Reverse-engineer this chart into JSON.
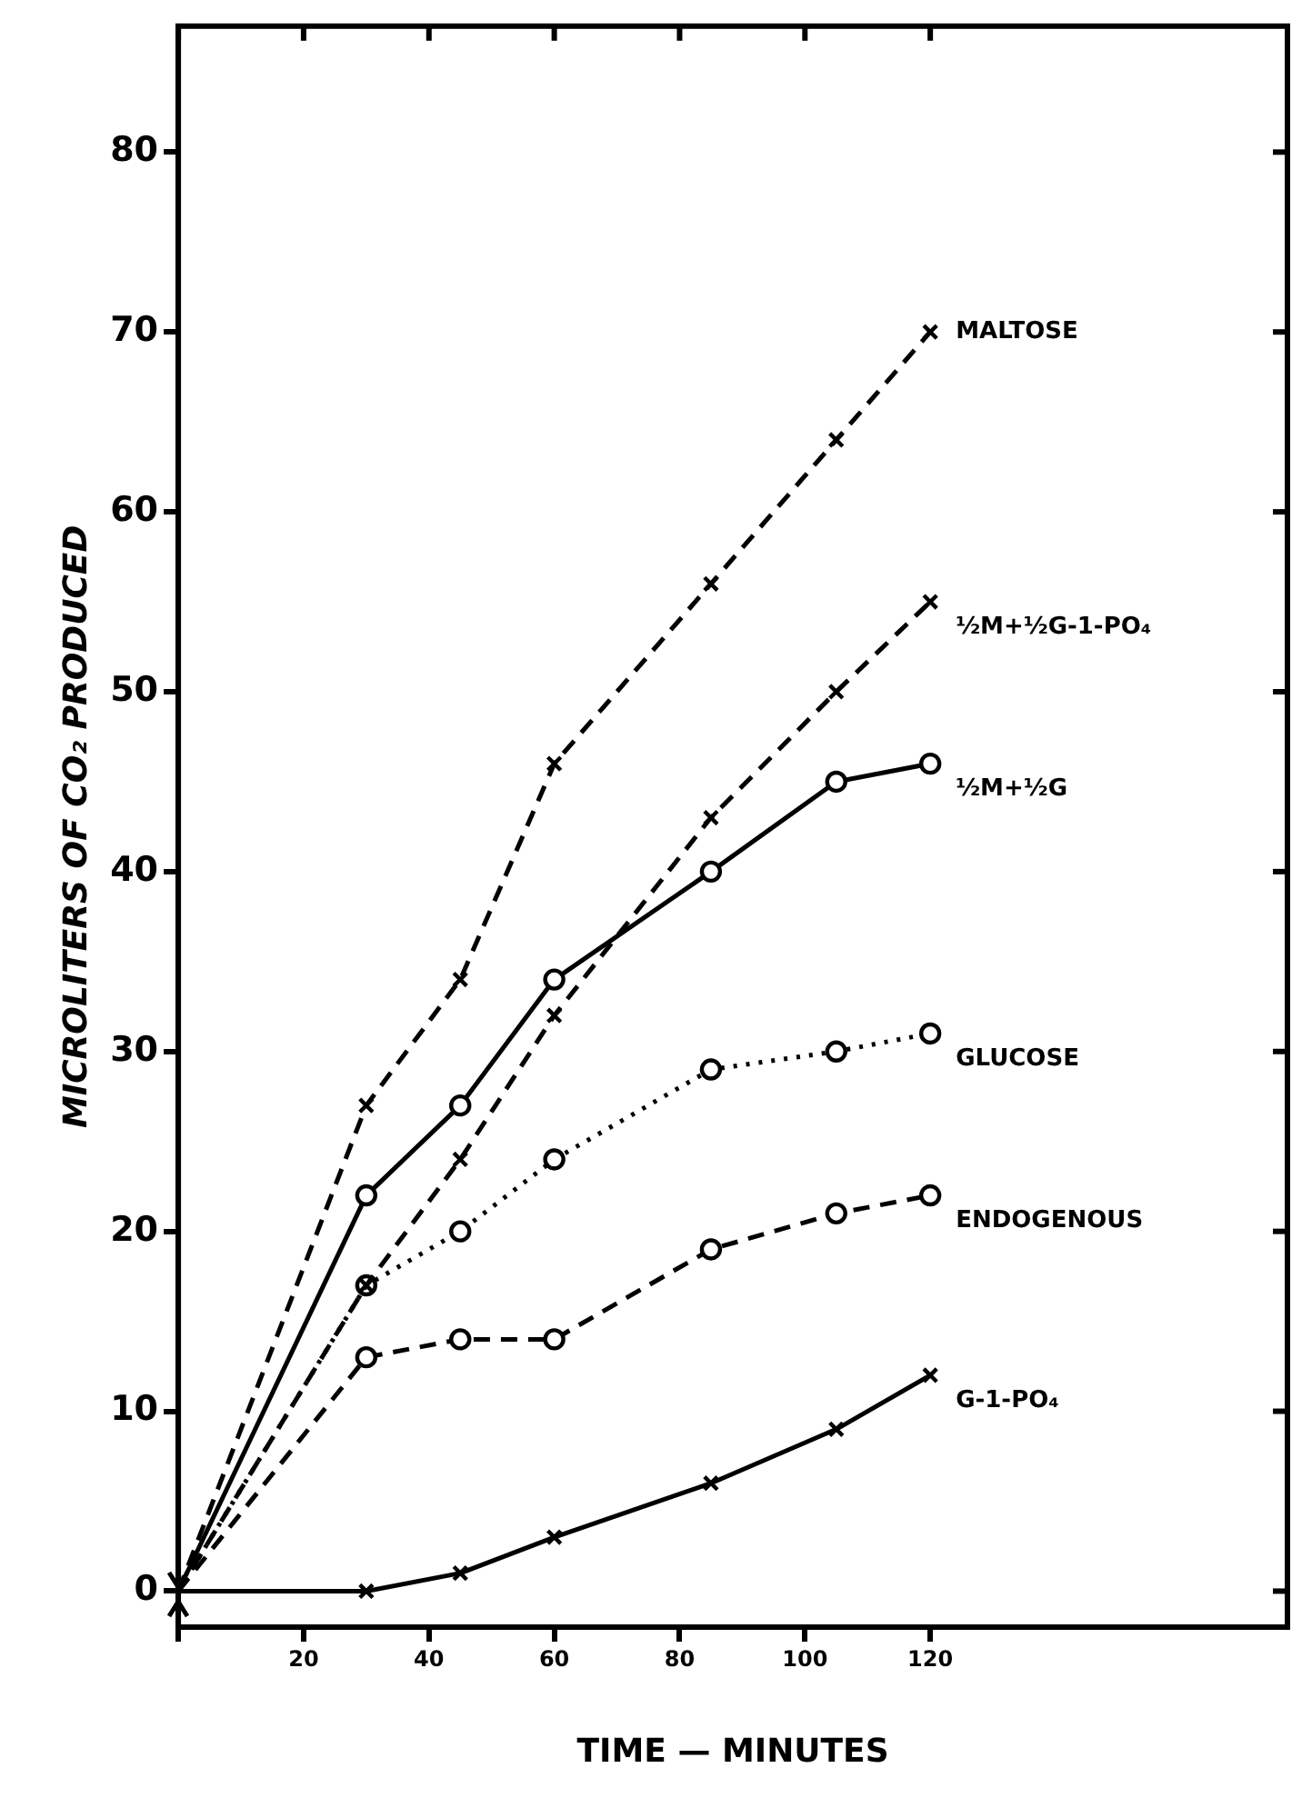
{
  "chart_data": {
    "type": "line",
    "xlabel": "TIME — MINUTES",
    "ylabel": "MICROLITERS OF CO₂ PRODUCED",
    "x": [
      0,
      30,
      45,
      60,
      85,
      105,
      120
    ],
    "xlim": [
      0,
      177
    ],
    "xticks": [
      {
        "value": 0,
        "label": null
      },
      20,
      40,
      60,
      80,
      100,
      120
    ],
    "ylim": [
      -2,
      87
    ],
    "yticks": [
      0,
      10,
      20,
      30,
      40,
      50,
      60,
      70,
      80
    ],
    "grid": false,
    "legend": false,
    "series": [
      {
        "name": "MALTOSE",
        "color": "#000000",
        "marker": "cross",
        "line_style": "dashed",
        "values": [
          0,
          27,
          34,
          46,
          56,
          64,
          70
        ]
      },
      {
        "name": "½M+½G-1-PO₄",
        "color": "#000000",
        "marker": "cross",
        "line_style": "dashed",
        "values": [
          0,
          17,
          24,
          32,
          43,
          50,
          55
        ]
      },
      {
        "name": "½M+½G",
        "color": "#000000",
        "marker": "circle",
        "line_style": "solid",
        "values": [
          0,
          22,
          27,
          34,
          40,
          45,
          46
        ]
      },
      {
        "name": "GLUCOSE",
        "color": "#000000",
        "marker": "circle",
        "line_style": "dotted",
        "values": [
          0,
          17,
          20,
          24,
          29,
          30,
          31
        ]
      },
      {
        "name": "ENDOGENOUS",
        "color": "#000000",
        "marker": "circle",
        "line_style": "dashed",
        "values": [
          0,
          13,
          14,
          14,
          19,
          21,
          22
        ]
      },
      {
        "name": "G-1-PO₄",
        "color": "#000000",
        "marker": "cross",
        "line_style": "solid",
        "values": [
          0,
          0,
          1,
          3,
          6,
          9,
          12
        ]
      }
    ]
  }
}
